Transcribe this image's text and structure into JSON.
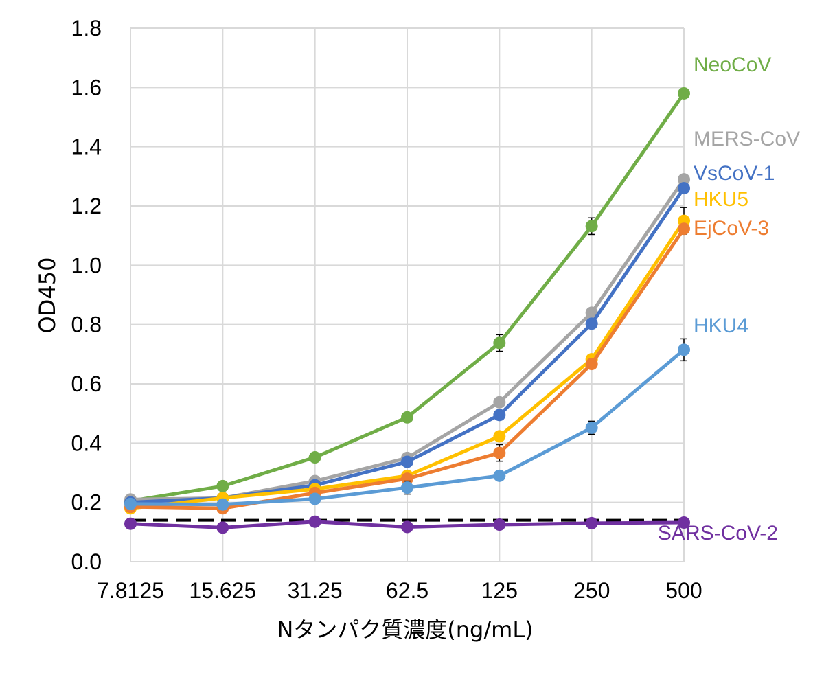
{
  "chart_data": {
    "type": "line",
    "title": "",
    "xlabel": "Nタンパク質濃度(ng/mL)",
    "ylabel": "OD450",
    "categories": [
      "7.8125",
      "15.625",
      "31.25",
      "62.5",
      "125",
      "250",
      "500"
    ],
    "ylim": [
      0,
      1.8
    ],
    "yticks": [
      "0.0",
      "0.2",
      "0.4",
      "0.6",
      "0.8",
      "1.0",
      "1.2",
      "1.4",
      "1.6",
      "1.8"
    ],
    "grid": true,
    "legend": "none (series labeled at line ends)",
    "series": [
      {
        "name": "NeoCoV",
        "color": "#70AD47",
        "values": [
          0.205,
          0.255,
          0.352,
          0.487,
          0.738,
          1.132,
          1.58
        ],
        "errors": [
          0,
          0,
          0,
          0,
          0.028,
          0.028,
          0
        ]
      },
      {
        "name": "MERS-CoV",
        "color": "#A5A5A5",
        "values": [
          0.21,
          0.215,
          0.272,
          0.35,
          0.538,
          0.84,
          1.29
        ],
        "errors": [
          0,
          0,
          0,
          0,
          0,
          0,
          0
        ]
      },
      {
        "name": "VsCoV-1",
        "color": "#4472C4",
        "values": [
          0.2,
          0.215,
          0.258,
          0.337,
          0.495,
          0.803,
          1.26
        ],
        "errors": [
          0,
          0,
          0,
          0,
          0,
          0,
          0
        ]
      },
      {
        "name": "HKU5",
        "color": "#FFC000",
        "values": [
          0.18,
          0.215,
          0.245,
          0.29,
          0.423,
          0.683,
          1.15
        ],
        "errors": [
          0,
          0,
          0,
          0,
          0,
          0,
          0.045
        ]
      },
      {
        "name": "EjCoV-3",
        "color": "#ED7D31",
        "values": [
          0.185,
          0.18,
          0.232,
          0.28,
          0.367,
          0.667,
          1.123
        ],
        "errors": [
          0,
          0,
          0,
          0,
          0.028,
          0,
          0
        ]
      },
      {
        "name": "HKU4",
        "color": "#5B9BD5",
        "values": [
          0.195,
          0.193,
          0.212,
          0.25,
          0.29,
          0.452,
          0.715
        ],
        "errors": [
          0,
          0,
          0,
          0.022,
          0,
          0.022,
          0.037
        ]
      },
      {
        "name": "SARS-CoV-2",
        "color": "#7030A0",
        "values": [
          0.128,
          0.115,
          0.135,
          0.117,
          0.125,
          0.13,
          0.132
        ],
        "errors": [
          0,
          0,
          0,
          0,
          0,
          0,
          0
        ]
      }
    ],
    "reference_line": {
      "value": 0.14,
      "style": "dashed",
      "color": "#000000"
    }
  }
}
